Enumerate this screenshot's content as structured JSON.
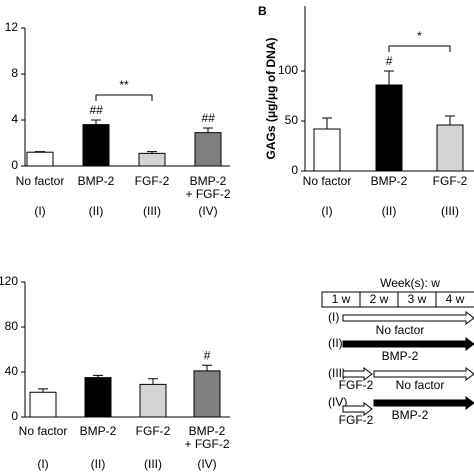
{
  "chart_data": [
    {
      "type": "bar",
      "categories": [
        "No factor",
        "BMP-2",
        "FGF-2",
        "BMP-2\n+ FGF-2"
      ],
      "groups": [
        "(I)",
        "(II)",
        "(III)",
        "(IV)"
      ],
      "values": [
        1.2,
        3.6,
        1.1,
        2.9
      ],
      "errors": [
        0.05,
        0.4,
        0.15,
        0.4
      ],
      "colors": [
        "#ffffff",
        "#000000",
        "#d4d4d4",
        "#7f7f7f"
      ],
      "markers": [
        null,
        "##",
        null,
        "##"
      ],
      "significance": {
        "text": "**",
        "between": [
          "BMP-2",
          "FGF-2"
        ]
      },
      "ylim": [
        0,
        12
      ],
      "yticks": [
        0,
        4,
        8,
        12
      ]
    },
    {
      "type": "bar",
      "panel": "B",
      "ylabel": "GAGs (μg/μg of DNA)",
      "categories": [
        "No factor",
        "BMP-2",
        "FGF-2"
      ],
      "groups": [
        "(I)",
        "(II)",
        "(III)"
      ],
      "values": [
        42,
        86,
        46
      ],
      "errors": [
        11,
        14,
        9
      ],
      "colors": [
        "#ffffff",
        "#000000",
        "#d4d4d4"
      ],
      "markers": [
        null,
        "#",
        null
      ],
      "significance": {
        "text": "*",
        "between": [
          "BMP-2",
          "FGF-2"
        ]
      },
      "ylim": [
        0,
        165
      ],
      "yticks": [
        0,
        50,
        100
      ]
    },
    {
      "type": "bar",
      "categories": [
        "No factor",
        "BMP-2",
        "FGF-2",
        "BMP-2\n+ FGF-2"
      ],
      "groups": [
        "(I)",
        "(II)",
        "(III)",
        "(IV)"
      ],
      "values": [
        22,
        35,
        29,
        41
      ],
      "errors": [
        3,
        2,
        5,
        5
      ],
      "colors": [
        "#ffffff",
        "#000000",
        "#d4d4d4",
        "#7f7f7f"
      ],
      "markers": [
        null,
        null,
        null,
        "#"
      ],
      "ylim": [
        0,
        120
      ],
      "yticks": [
        0,
        40,
        80,
        120
      ]
    }
  ],
  "diagram": {
    "header": "Week(s): w",
    "weeks": [
      "1 w",
      "2 w",
      "3 w",
      "4 w"
    ],
    "rows": [
      {
        "group": "(I)",
        "labels": [
          "No factor"
        ]
      },
      {
        "group": "(II)",
        "labels": [
          "BMP-2"
        ]
      },
      {
        "group": "(III)",
        "labels": [
          "FGF-2",
          "No factor"
        ]
      },
      {
        "group": "(IV)",
        "labels": [
          "FGF-2",
          "BMP-2"
        ]
      }
    ]
  }
}
